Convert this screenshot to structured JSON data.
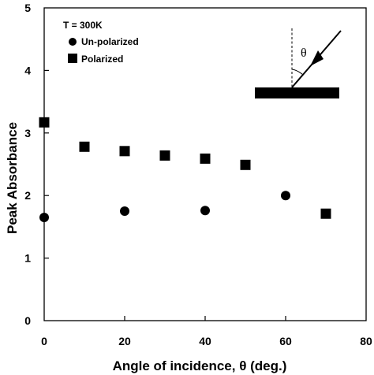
{
  "chart_data": {
    "type": "scatter",
    "title": "",
    "xlabel": "Angle of incidence, θ (deg.)",
    "ylabel": "Peak Absorbance",
    "xlim": [
      0,
      80
    ],
    "ylim": [
      0,
      5
    ],
    "x_ticks": [
      "0",
      "20",
      "40",
      "60",
      "80"
    ],
    "y_ticks": [
      "0",
      "1",
      "2",
      "3",
      "4",
      "5"
    ],
    "grid": false,
    "legend_title": "T = 300K",
    "legend_position": "top-left",
    "series": [
      {
        "name": "Un-polarized",
        "marker": "circle",
        "color": "#000000",
        "points": [
          {
            "x": 0,
            "y": 1.65
          },
          {
            "x": 20,
            "y": 1.75
          },
          {
            "x": 40,
            "y": 1.76
          },
          {
            "x": 60,
            "y": 2.0
          }
        ]
      },
      {
        "name": "Polarized",
        "marker": "square",
        "color": "#000000",
        "points": [
          {
            "x": 0,
            "y": 3.17
          },
          {
            "x": 10,
            "y": 2.78
          },
          {
            "x": 20,
            "y": 2.71
          },
          {
            "x": 30,
            "y": 2.64
          },
          {
            "x": 40,
            "y": 2.59
          },
          {
            "x": 50,
            "y": 2.49
          },
          {
            "x": 70,
            "y": 1.71
          }
        ]
      }
    ],
    "inset": {
      "angle_symbol": "θ"
    }
  }
}
